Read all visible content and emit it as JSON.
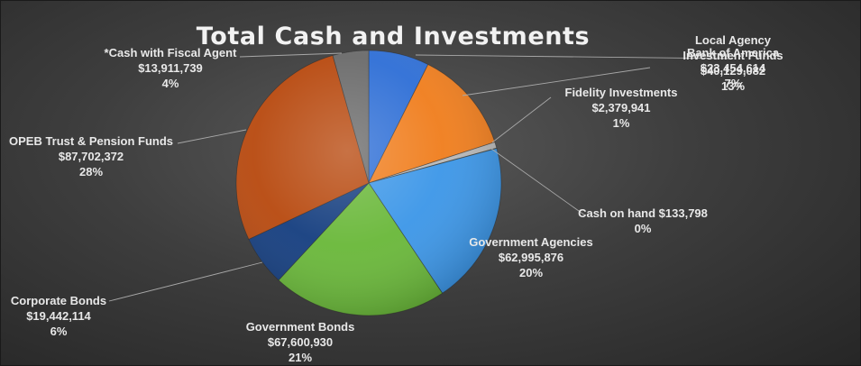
{
  "chart_data": {
    "type": "pie",
    "title": "Total Cash and Investments",
    "slices": [
      {
        "label": "Bank of America",
        "value_text": "$23,454,614",
        "pct": "7%",
        "value": 23454614,
        "color": "#2f6fd6"
      },
      {
        "label": "Local Agency Investment Funds",
        "value_text": "$40,129,082",
        "pct": "13%",
        "value": 40129082,
        "color": "#f07e1e"
      },
      {
        "label": "Fidelity Investments",
        "value_text": "$2,379,941",
        "pct": "1%",
        "value": 2379941,
        "color": "#b8b8b8"
      },
      {
        "label": "Cash on hand",
        "value_text": "$133,798",
        "pct": "0%",
        "value": 133798,
        "color": "#e0c030"
      },
      {
        "label": "Government Agencies",
        "value_text": "$62,995,876",
        "pct": "20%",
        "value": 62995876,
        "color": "#3d97e8"
      },
      {
        "label": "Government Bonds",
        "value_text": "$67,600,930",
        "pct": "21%",
        "value": 67600930,
        "color": "#6ab83a"
      },
      {
        "label": "Corporate Bonds",
        "value_text": "$19,442,114",
        "pct": "6%",
        "value": 19442114,
        "color": "#163f80"
      },
      {
        "label": "OPEB Trust & Pension Funds",
        "value_text": "$87,702,372",
        "pct": "28%",
        "value": 87702372,
        "color": "#b84a10"
      },
      {
        "label": "*Cash with Fiscal Agent",
        "value_text": "$13,911,739",
        "pct": "4%",
        "value": 13911739,
        "color": "#6b6b6b"
      }
    ]
  }
}
